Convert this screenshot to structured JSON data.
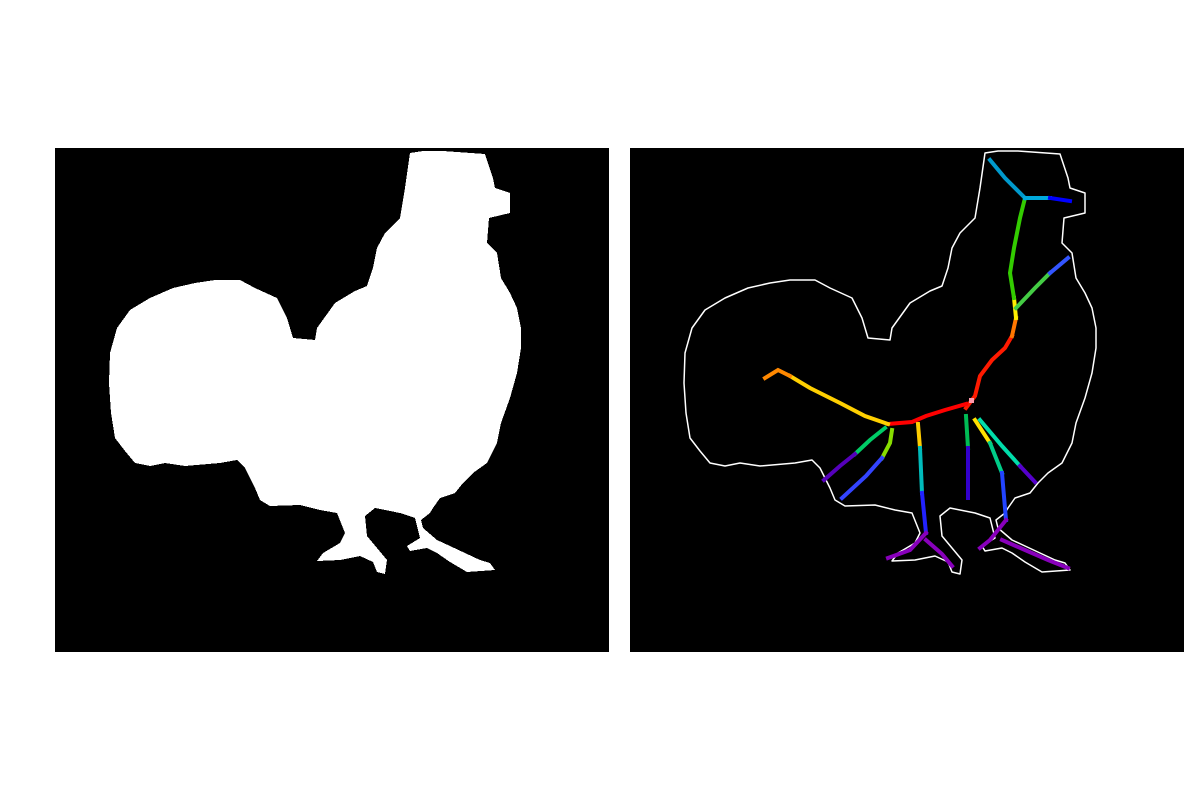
{
  "figure": {
    "background": "#ffffff",
    "panel_background": "#000000",
    "silhouette_color": "#ffffff",
    "outline_color": "#ffffff",
    "panels": [
      {
        "name": "binary-mask"
      },
      {
        "name": "skeleton-overlay"
      }
    ],
    "skeleton_palette": [
      "#ff0000",
      "#ff7f00",
      "#ffff00",
      "#00cc00",
      "#00aaaa",
      "#0000ff",
      "#7f00bf"
    ]
  }
}
